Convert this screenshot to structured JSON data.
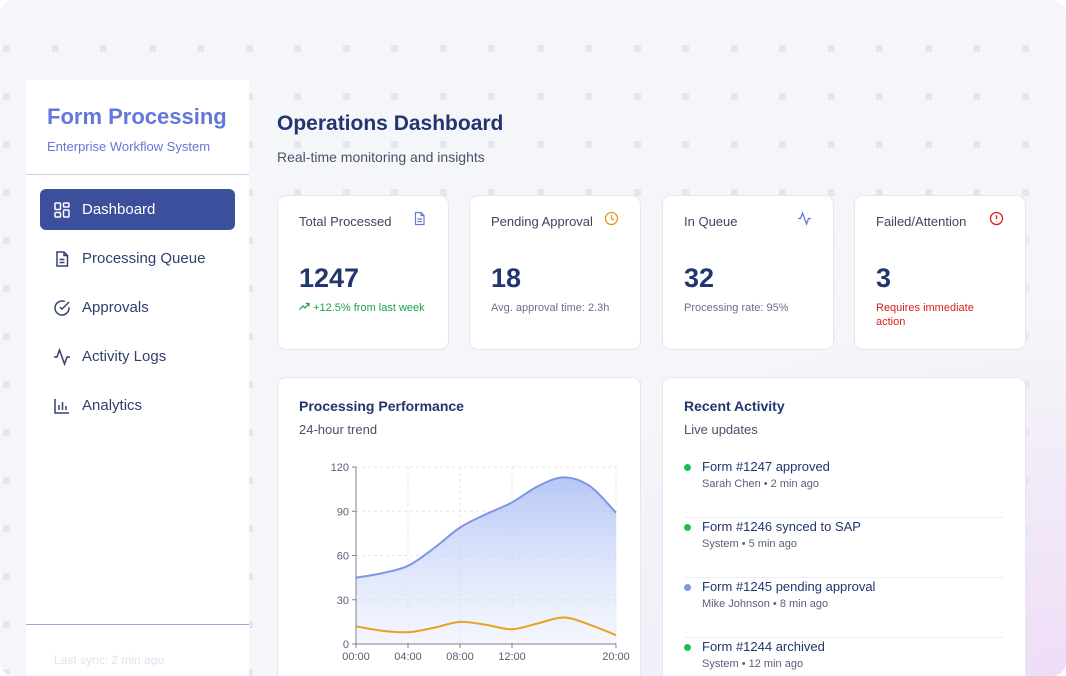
{
  "sidebar": {
    "brand_title": "Form Processing",
    "brand_subtitle": "Enterprise Workflow System",
    "items": [
      {
        "label": "Dashboard",
        "icon": "grid-icon",
        "active": true
      },
      {
        "label": "Processing Queue",
        "icon": "document-icon",
        "active": false
      },
      {
        "label": "Approvals",
        "icon": "check-circle-icon",
        "active": false
      },
      {
        "label": "Activity Logs",
        "icon": "activity-icon",
        "active": false
      },
      {
        "label": "Analytics",
        "icon": "bar-chart-icon",
        "active": false
      }
    ],
    "last_sync": "Last sync: 2 min ago"
  },
  "header": {
    "title": "Operations Dashboard",
    "subtitle": "Real-time monitoring and insights"
  },
  "stats": [
    {
      "label": "Total Processed",
      "value": "1247",
      "note": "+12.5% from last week",
      "icon": "document-icon",
      "accent": "#6378d8",
      "note_color": "#17a34a"
    },
    {
      "label": "Pending Approval",
      "value": "18",
      "note": "Avg. approval time: 2.3h",
      "icon": "clock-icon",
      "accent": "#e39a1a"
    },
    {
      "label": "In Queue",
      "value": "32",
      "note": "Processing rate: 95%",
      "icon": "activity-icon",
      "accent": "#6378d8"
    },
    {
      "label": "Failed/Attention",
      "value": "3",
      "note": "Requires immediate action",
      "icon": "alert-circle-icon",
      "accent": "#d61f1f",
      "note_color": "#d61f1f"
    }
  ],
  "performance": {
    "title": "Processing Performance",
    "subtitle": "24-hour trend"
  },
  "chart_data": {
    "type": "area",
    "x": [
      "00:00",
      "02:00",
      "04:00",
      "06:00",
      "08:00",
      "10:00",
      "12:00",
      "14:00",
      "16:00",
      "18:00",
      "20:00"
    ],
    "x_tick_labels": [
      "00:00",
      "04:00",
      "08:00",
      "12:00",
      "20:00"
    ],
    "y_ticks": [
      0,
      30,
      60,
      90,
      120
    ],
    "ylim": [
      0,
      120
    ],
    "series": [
      {
        "values": [
          45,
          48,
          53,
          65,
          79,
          88,
          96,
          107,
          113,
          107,
          89
        ],
        "color": "#7f95e6",
        "fill": true
      },
      {
        "values": [
          12,
          9,
          8,
          11,
          15,
          13,
          10,
          14,
          18,
          13,
          6
        ],
        "color": "#e8a21c",
        "fill": false
      }
    ],
    "grid": true
  },
  "activity": {
    "title": "Recent Activity",
    "subtitle": "Live updates",
    "items": [
      {
        "title": "Form #1247 approved",
        "meta": "Sarah Chen • 2 min ago",
        "color": "#17c24f"
      },
      {
        "title": "Form #1246 synced to SAP",
        "meta": "System • 5 min ago",
        "color": "#17c24f"
      },
      {
        "title": "Form #1245 pending approval",
        "meta": "Mike Johnson • 8 min ago",
        "color": "#7f95e6"
      },
      {
        "title": "Form #1244 archived",
        "meta": "System • 12 min ago",
        "color": "#17c24f"
      }
    ]
  }
}
